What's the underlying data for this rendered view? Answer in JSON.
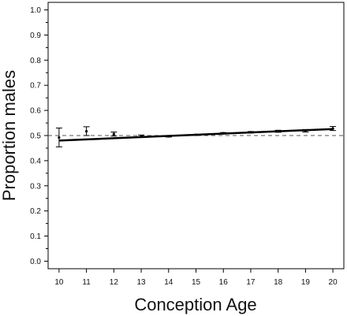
{
  "chart_data": {
    "type": "scatter",
    "title": "",
    "xlabel": "Conception Age",
    "ylabel": "Proportion males",
    "xlim": [
      9.6,
      20.4
    ],
    "ylim": [
      -0.03,
      1.03
    ],
    "x_ticks": [
      10,
      11,
      12,
      13,
      14,
      15,
      16,
      17,
      18,
      19,
      20
    ],
    "x_tick_labels": [
      "10",
      "11",
      "12",
      "13",
      "14",
      "15",
      "16",
      "17",
      "18",
      "19",
      "20"
    ],
    "y_ticks": [
      0.0,
      0.1,
      0.2,
      0.3,
      0.4,
      0.5,
      0.6,
      0.7,
      0.8,
      0.9,
      1.0
    ],
    "y_tick_labels": [
      "0.0",
      "0.1",
      "0.2",
      "0.3",
      "0.4",
      "0.5",
      "0.6",
      "0.7",
      "0.8",
      "0.9",
      "1.0"
    ],
    "reference_line": {
      "y": 0.5,
      "style": "dashed"
    },
    "points": [
      {
        "x": 10,
        "y": 0.492,
        "lower": 0.455,
        "upper": 0.53
      },
      {
        "x": 11,
        "y": 0.517,
        "lower": 0.5,
        "upper": 0.535
      },
      {
        "x": 12,
        "y": 0.506,
        "lower": 0.498,
        "upper": 0.514
      },
      {
        "x": 13,
        "y": 0.498,
        "lower": 0.494,
        "upper": 0.502
      },
      {
        "x": 14,
        "y": 0.497,
        "lower": 0.494,
        "upper": 0.5
      },
      {
        "x": 15,
        "y": 0.503,
        "lower": 0.501,
        "upper": 0.505
      },
      {
        "x": 16,
        "y": 0.509,
        "lower": 0.506,
        "upper": 0.512
      },
      {
        "x": 17,
        "y": 0.513,
        "lower": 0.51,
        "upper": 0.516
      },
      {
        "x": 18,
        "y": 0.517,
        "lower": 0.513,
        "upper": 0.521
      },
      {
        "x": 19,
        "y": 0.519,
        "lower": 0.514,
        "upper": 0.524
      },
      {
        "x": 20,
        "y": 0.528,
        "lower": 0.52,
        "upper": 0.536
      }
    ],
    "fit_line": {
      "x": [
        10,
        20
      ],
      "y": [
        0.48,
        0.526
      ]
    },
    "grid": false,
    "legend": "none"
  }
}
